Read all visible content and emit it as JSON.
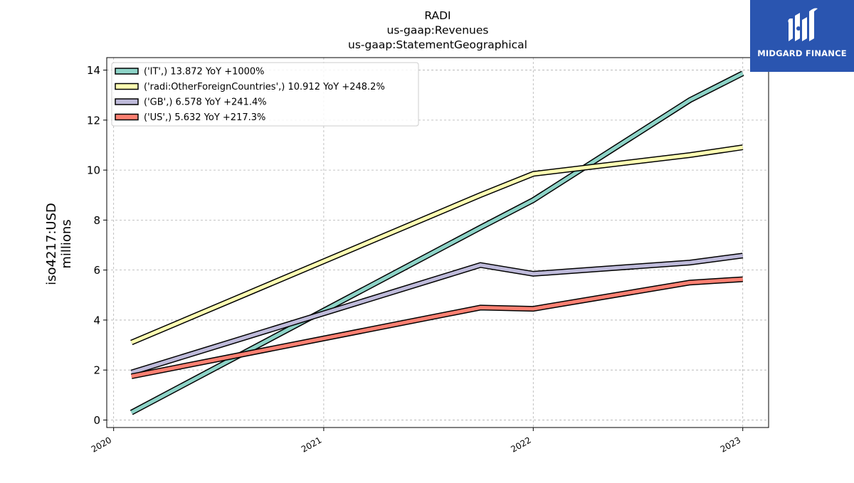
{
  "chart_data": {
    "type": "line",
    "title": [
      "RADI",
      "us-gaap:Revenues",
      "us-gaap:StatementGeographical"
    ],
    "ylabel": [
      "iso4217:USD",
      "millions"
    ],
    "xlabel": "",
    "x_ticks": [
      "2020",
      "2021",
      "2022",
      "2023"
    ],
    "y_ticks": [
      0,
      2,
      4,
      6,
      8,
      10,
      12,
      14
    ],
    "ylim": [
      -0.3,
      14.5
    ],
    "xlim": [
      "2019-12-20",
      "2023-02-15"
    ],
    "grid": true,
    "legend_position": "upper-left",
    "series": [
      {
        "name": "('IT',) 13.872 YoY +1000%",
        "color": "#8dd3c7",
        "points": [
          [
            "2020-02-01",
            0.3
          ],
          [
            "2021-10-01",
            7.7
          ],
          [
            "2022-01-01",
            8.8
          ],
          [
            "2022-10-01",
            12.8
          ],
          [
            "2023-01-01",
            13.872
          ]
        ]
      },
      {
        "name": "('radi:OtherForeignCountries',) 10.912 YoY +248.2%",
        "color": "#ffffb3",
        "points": [
          [
            "2020-02-01",
            3.1
          ],
          [
            "2021-10-01",
            9.0
          ],
          [
            "2022-01-01",
            9.85
          ],
          [
            "2022-10-01",
            10.6
          ],
          [
            "2023-01-01",
            10.912
          ]
        ]
      },
      {
        "name": "('GB',) 6.578 YoY +241.4%",
        "color": "#bebada",
        "points": [
          [
            "2020-02-01",
            1.9
          ],
          [
            "2021-10-01",
            6.2
          ],
          [
            "2022-01-01",
            5.85
          ],
          [
            "2022-10-01",
            6.3
          ],
          [
            "2023-01-01",
            6.578
          ]
        ]
      },
      {
        "name": "('US',) 5.632 YoY +217.3%",
        "color": "#fb8072",
        "points": [
          [
            "2020-02-01",
            1.75
          ],
          [
            "2021-10-01",
            4.5
          ],
          [
            "2022-01-01",
            4.45
          ],
          [
            "2022-10-01",
            5.5
          ],
          [
            "2023-01-01",
            5.632
          ]
        ]
      }
    ]
  },
  "logo": {
    "text": "MIDGARD FINANCE",
    "background": "#2a55b0"
  }
}
